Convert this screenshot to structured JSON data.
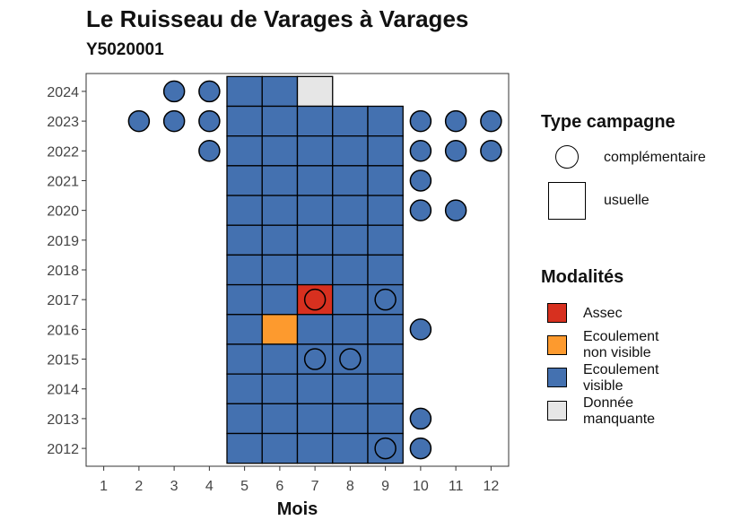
{
  "chart_data": {
    "type": "heatmap",
    "title": "Le Ruisseau de Varages à Varages",
    "subtitle": "Y5020001",
    "xlabel": "Mois",
    "ylabel": "",
    "x_ticks": [
      1,
      2,
      3,
      4,
      5,
      6,
      7,
      8,
      9,
      10,
      11,
      12
    ],
    "y_ticks": [
      2012,
      2013,
      2014,
      2015,
      2016,
      2017,
      2018,
      2019,
      2020,
      2021,
      2022,
      2023,
      2024
    ],
    "xlim": [
      0.5,
      12.5
    ],
    "ylim": [
      2011.4,
      2024.6
    ],
    "colors": {
      "Assec": "#d7301f",
      "Ecoulement non visible": "#fd9a2e",
      "Ecoulement visible": "#4471b0",
      "Donnée manquante": "#e6e6e6"
    },
    "usuelle": [
      {
        "year": 2024,
        "month": 5,
        "modalite": "Ecoulement visible"
      },
      {
        "year": 2024,
        "month": 6,
        "modalite": "Ecoulement visible"
      },
      {
        "year": 2024,
        "month": 7,
        "modalite": "Donnée manquante"
      },
      {
        "year": 2023,
        "month": 5,
        "modalite": "Ecoulement visible"
      },
      {
        "year": 2023,
        "month": 6,
        "modalite": "Ecoulement visible"
      },
      {
        "year": 2023,
        "month": 7,
        "modalite": "Ecoulement visible"
      },
      {
        "year": 2023,
        "month": 8,
        "modalite": "Ecoulement visible"
      },
      {
        "year": 2023,
        "month": 9,
        "modalite": "Ecoulement visible"
      },
      {
        "year": 2022,
        "month": 5,
        "modalite": "Ecoulement visible"
      },
      {
        "year": 2022,
        "month": 6,
        "modalite": "Ecoulement visible"
      },
      {
        "year": 2022,
        "month": 7,
        "modalite": "Ecoulement visible"
      },
      {
        "year": 2022,
        "month": 8,
        "modalite": "Ecoulement visible"
      },
      {
        "year": 2022,
        "month": 9,
        "modalite": "Ecoulement visible"
      },
      {
        "year": 2021,
        "month": 5,
        "modalite": "Ecoulement visible"
      },
      {
        "year": 2021,
        "month": 6,
        "modalite": "Ecoulement visible"
      },
      {
        "year": 2021,
        "month": 7,
        "modalite": "Ecoulement visible"
      },
      {
        "year": 2021,
        "month": 8,
        "modalite": "Ecoulement visible"
      },
      {
        "year": 2021,
        "month": 9,
        "modalite": "Ecoulement visible"
      },
      {
        "year": 2020,
        "month": 5,
        "modalite": "Ecoulement visible"
      },
      {
        "year": 2020,
        "month": 6,
        "modalite": "Ecoulement visible"
      },
      {
        "year": 2020,
        "month": 7,
        "modalite": "Ecoulement visible"
      },
      {
        "year": 2020,
        "month": 8,
        "modalite": "Ecoulement visible"
      },
      {
        "year": 2020,
        "month": 9,
        "modalite": "Ecoulement visible"
      },
      {
        "year": 2019,
        "month": 5,
        "modalite": "Ecoulement visible"
      },
      {
        "year": 2019,
        "month": 6,
        "modalite": "Ecoulement visible"
      },
      {
        "year": 2019,
        "month": 7,
        "modalite": "Ecoulement visible"
      },
      {
        "year": 2019,
        "month": 8,
        "modalite": "Ecoulement visible"
      },
      {
        "year": 2019,
        "month": 9,
        "modalite": "Ecoulement visible"
      },
      {
        "year": 2018,
        "month": 5,
        "modalite": "Ecoulement visible"
      },
      {
        "year": 2018,
        "month": 6,
        "modalite": "Ecoulement visible"
      },
      {
        "year": 2018,
        "month": 7,
        "modalite": "Ecoulement visible"
      },
      {
        "year": 2018,
        "month": 8,
        "modalite": "Ecoulement visible"
      },
      {
        "year": 2018,
        "month": 9,
        "modalite": "Ecoulement visible"
      },
      {
        "year": 2017,
        "month": 5,
        "modalite": "Ecoulement visible"
      },
      {
        "year": 2017,
        "month": 6,
        "modalite": "Ecoulement visible"
      },
      {
        "year": 2017,
        "month": 7,
        "modalite": "Assec"
      },
      {
        "year": 2017,
        "month": 8,
        "modalite": "Ecoulement visible"
      },
      {
        "year": 2017,
        "month": 9,
        "modalite": "Ecoulement visible"
      },
      {
        "year": 2016,
        "month": 5,
        "modalite": "Ecoulement visible"
      },
      {
        "year": 2016,
        "month": 6,
        "modalite": "Ecoulement non visible"
      },
      {
        "year": 2016,
        "month": 7,
        "modalite": "Ecoulement visible"
      },
      {
        "year": 2016,
        "month": 8,
        "modalite": "Ecoulement visible"
      },
      {
        "year": 2016,
        "month": 9,
        "modalite": "Ecoulement visible"
      },
      {
        "year": 2015,
        "month": 5,
        "modalite": "Ecoulement visible"
      },
      {
        "year": 2015,
        "month": 6,
        "modalite": "Ecoulement visible"
      },
      {
        "year": 2015,
        "month": 7,
        "modalite": "Ecoulement visible"
      },
      {
        "year": 2015,
        "month": 8,
        "modalite": "Ecoulement visible"
      },
      {
        "year": 2015,
        "month": 9,
        "modalite": "Ecoulement visible"
      },
      {
        "year": 2014,
        "month": 5,
        "modalite": "Ecoulement visible"
      },
      {
        "year": 2014,
        "month": 6,
        "modalite": "Ecoulement visible"
      },
      {
        "year": 2014,
        "month": 7,
        "modalite": "Ecoulement visible"
      },
      {
        "year": 2014,
        "month": 8,
        "modalite": "Ecoulement visible"
      },
      {
        "year": 2014,
        "month": 9,
        "modalite": "Ecoulement visible"
      },
      {
        "year": 2013,
        "month": 5,
        "modalite": "Ecoulement visible"
      },
      {
        "year": 2013,
        "month": 6,
        "modalite": "Ecoulement visible"
      },
      {
        "year": 2013,
        "month": 7,
        "modalite": "Ecoulement visible"
      },
      {
        "year": 2013,
        "month": 8,
        "modalite": "Ecoulement visible"
      },
      {
        "year": 2013,
        "month": 9,
        "modalite": "Ecoulement visible"
      },
      {
        "year": 2012,
        "month": 5,
        "modalite": "Ecoulement visible"
      },
      {
        "year": 2012,
        "month": 6,
        "modalite": "Ecoulement visible"
      },
      {
        "year": 2012,
        "month": 7,
        "modalite": "Ecoulement visible"
      },
      {
        "year": 2012,
        "month": 8,
        "modalite": "Ecoulement visible"
      },
      {
        "year": 2012,
        "month": 9,
        "modalite": "Ecoulement visible"
      }
    ],
    "complementaire": [
      {
        "year": 2024,
        "month": 3,
        "modalite": "Ecoulement visible"
      },
      {
        "year": 2024,
        "month": 4,
        "modalite": "Ecoulement visible"
      },
      {
        "year": 2023,
        "month": 2,
        "modalite": "Ecoulement visible"
      },
      {
        "year": 2023,
        "month": 3,
        "modalite": "Ecoulement visible"
      },
      {
        "year": 2023,
        "month": 4,
        "modalite": "Ecoulement visible"
      },
      {
        "year": 2023,
        "month": 10,
        "modalite": "Ecoulement visible"
      },
      {
        "year": 2023,
        "month": 11,
        "modalite": "Ecoulement visible"
      },
      {
        "year": 2023,
        "month": 12,
        "modalite": "Ecoulement visible"
      },
      {
        "year": 2022,
        "month": 4,
        "modalite": "Ecoulement visible"
      },
      {
        "year": 2022,
        "month": 10,
        "modalite": "Ecoulement visible"
      },
      {
        "year": 2022,
        "month": 11,
        "modalite": "Ecoulement visible"
      },
      {
        "year": 2022,
        "month": 12,
        "modalite": "Ecoulement visible"
      },
      {
        "year": 2021,
        "month": 10,
        "modalite": "Ecoulement visible"
      },
      {
        "year": 2020,
        "month": 10,
        "modalite": "Ecoulement visible"
      },
      {
        "year": 2020,
        "month": 11,
        "modalite": "Ecoulement visible"
      },
      {
        "year": 2017,
        "month": 7,
        "modalite": "Assec"
      },
      {
        "year": 2017,
        "month": 9,
        "modalite": "Ecoulement visible"
      },
      {
        "year": 2016,
        "month": 10,
        "modalite": "Ecoulement visible"
      },
      {
        "year": 2015,
        "month": 7,
        "modalite": "Ecoulement visible"
      },
      {
        "year": 2015,
        "month": 8,
        "modalite": "Ecoulement visible"
      },
      {
        "year": 2013,
        "month": 10,
        "modalite": "Ecoulement visible"
      },
      {
        "year": 2012,
        "month": 9,
        "modalite": "Ecoulement visible"
      },
      {
        "year": 2012,
        "month": 10,
        "modalite": "Ecoulement visible"
      }
    ],
    "legend": {
      "position": "right",
      "type_title": "Type campagne",
      "type_entries": [
        "complémentaire",
        "usuelle"
      ],
      "modalites_title": "Modalités",
      "modalites_entries": [
        {
          "line1": "Assec",
          "line2": "",
          "key": "Assec"
        },
        {
          "line1": "Ecoulement",
          "line2": "non visible",
          "key": "Ecoulement non visible"
        },
        {
          "line1": "Ecoulement",
          "line2": "visible",
          "key": "Ecoulement visible"
        },
        {
          "line1": "Donnée",
          "line2": "manquante",
          "key": "Donnée manquante"
        }
      ]
    }
  }
}
